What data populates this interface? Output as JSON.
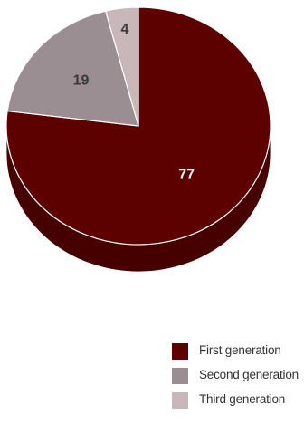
{
  "chart_data": {
    "type": "pie",
    "title": "",
    "slices": [
      {
        "label": "First generation",
        "value": 77,
        "color": "#5c0000",
        "depth_color": "#470000",
        "label_color": "#ffffff"
      },
      {
        "label": "Second generation",
        "value": 19,
        "color": "#9b8e93",
        "depth_color": "#7b6f74",
        "label_color": "#3a3a3a"
      },
      {
        "label": "Third generation",
        "value": 4,
        "color": "#c8b6b9",
        "depth_color": "#a89599",
        "label_color": "#3a3a3a"
      }
    ],
    "legend_position": "bottom-right",
    "style": "3d"
  },
  "legend": {
    "items": [
      {
        "label": "First generation",
        "color": "#5c0000"
      },
      {
        "label": "Second generation",
        "color": "#9b8e93"
      },
      {
        "label": "Third generation",
        "color": "#c8b6b9"
      }
    ]
  }
}
